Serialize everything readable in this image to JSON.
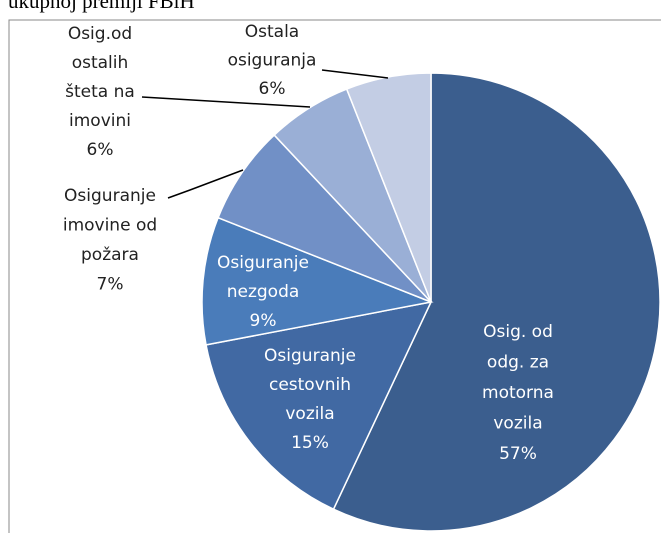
{
  "chart_data": {
    "type": "pie",
    "title": "ukupnoj premiji FBiH",
    "categories": [
      "Osig. od\nodg. za\nmotorna\nvozila",
      "Osiguranje\ncestovnih\nvozila",
      "Osiguranje\nnezgoda",
      "Osiguranje\nimovine od\npožara",
      "Osig.od\nostalih\nšteta na\nimovini",
      "Ostala\nosiguranja"
    ],
    "values": [
      57,
      15,
      9,
      7,
      6,
      6
    ],
    "value_labels": [
      "57%",
      "15%",
      "9%",
      "7%",
      "6%",
      "6%"
    ],
    "colors": [
      "#3b5e8e",
      "#4169a3",
      "#4a7cba",
      "#7190c6",
      "#9aafd6",
      "#c3cde4"
    ]
  }
}
